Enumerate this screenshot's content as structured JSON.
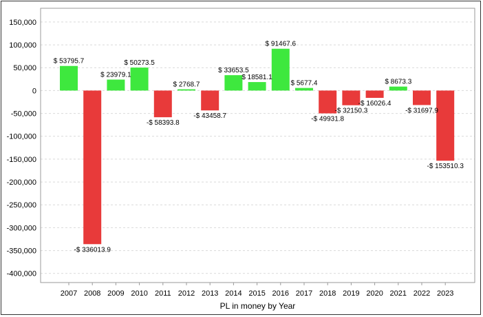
{
  "chart_data": {
    "type": "bar",
    "title": "",
    "xlabel": "PL in money by Year",
    "ylabel": "",
    "ylim": [
      -420000,
      180000
    ],
    "yticks": [
      150000,
      100000,
      50000,
      0,
      -50000,
      -100000,
      -150000,
      -200000,
      -250000,
      -300000,
      -350000,
      -400000
    ],
    "ytick_labels": [
      "150,000",
      "100,000",
      "50,000",
      "0",
      "-50,000",
      "-100,000",
      "-150,000",
      "-200,000",
      "-250,000",
      "-300,000",
      "-350,000",
      "-400,000"
    ],
    "grid": true,
    "categories": [
      "2007",
      "2008",
      "2009",
      "2010",
      "2011",
      "2012",
      "2013",
      "2014",
      "2015",
      "2016",
      "2017",
      "2018",
      "2019",
      "2020",
      "2021",
      "2022",
      "2023"
    ],
    "values": [
      53795.7,
      -336013.9,
      23979.1,
      50273.5,
      -58393.8,
      2768.7,
      -43458.7,
      33653.5,
      18581.1,
      91467.6,
      5677.4,
      -49931.8,
      -32150.3,
      -16026.4,
      8673.3,
      -31697.9,
      -153510.3
    ],
    "data_labels": [
      "$ 53795.7",
      "-$ 336013.9",
      "$ 23979.1",
      "$ 50273.5",
      "-$ 58393.8",
      "$ 2768.7",
      "-$ 43458.7",
      "$ 33653.5",
      "$ 18581.1",
      "$ 91467.6",
      "$ 5677.4",
      "-$ 49931.8",
      "-$ 32150.3",
      "-$ 16026.4",
      "$ 8673.3",
      "-$ 31697.9",
      "-$ 153510.3"
    ],
    "colors": {
      "positive": "#3ee83e",
      "negative": "#e83a3a",
      "grid": "#d9d9d9",
      "axis": "#999999"
    }
  }
}
